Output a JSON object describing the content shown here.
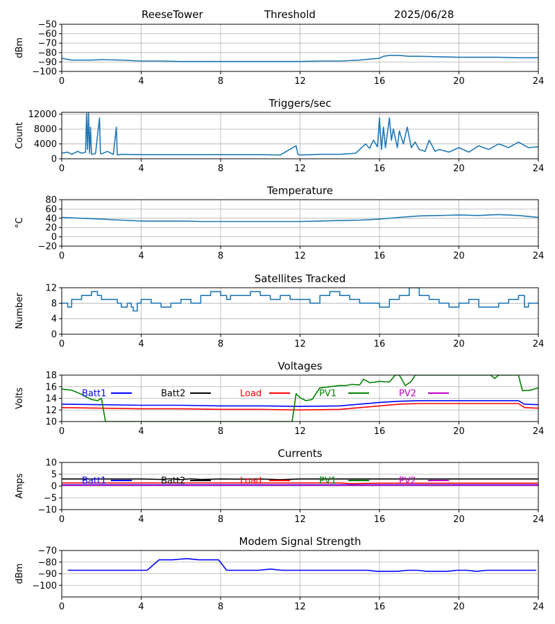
{
  "header": {
    "station": "ReeseTower",
    "mode": "Threshold",
    "date": "2025/06/28"
  },
  "colors": {
    "default_line": "#1f77b4",
    "grid": "#b0b0b0",
    "batt1": "#0000ff",
    "batt2": "#000000",
    "load": "#ff0000",
    "pv1": "#008000",
    "pv2": "#bf00bf"
  },
  "chart_data": [
    {
      "type": "line",
      "title": "",
      "xlabel": "",
      "ylabel": "dBm",
      "xlim": [
        0,
        24
      ],
      "ylim": [
        -100,
        -50
      ],
      "xticks": [
        "0",
        "4",
        "8",
        "12",
        "16",
        "20",
        "24"
      ],
      "yticks": [
        -100,
        -90,
        -80,
        -70,
        -60,
        -50
      ],
      "yticklabels": [
        "−100",
        "−90",
        "−80",
        "−70",
        "−60",
        "−50"
      ],
      "grid": true,
      "series": [
        {
          "color": "#1f77b4",
          "x": [
            0,
            0.5,
            1,
            1.5,
            2,
            3,
            4,
            5,
            6,
            7,
            8,
            9,
            10,
            11,
            12,
            13,
            14,
            15,
            15.5,
            16,
            16.2,
            16.5,
            17,
            17.5,
            18,
            19,
            20,
            21,
            22,
            23,
            24
          ],
          "y": [
            -86,
            -88,
            -88,
            -88,
            -87.5,
            -88,
            -89,
            -89,
            -89.5,
            -89.5,
            -89.5,
            -89.5,
            -89.5,
            -89.5,
            -89.5,
            -89,
            -89,
            -88,
            -87,
            -86,
            -84,
            -83,
            -83,
            -84,
            -84,
            -84.5,
            -85,
            -85,
            -85,
            -85.5,
            -85.5
          ]
        }
      ]
    },
    {
      "type": "line",
      "title": "Triggers/sec",
      "xlabel": "",
      "ylabel": "Count",
      "xlim": [
        0,
        24
      ],
      "ylim": [
        0,
        12500
      ],
      "xticks": [
        "0",
        "4",
        "8",
        "12",
        "16",
        "20",
        "24"
      ],
      "yticks": [
        0,
        4000,
        8000,
        12000
      ],
      "yticklabels": [
        "0",
        "4000",
        "8000",
        "12000"
      ],
      "grid": true,
      "series": [
        {
          "color": "#1f77b4",
          "x": [
            0,
            0.3,
            0.5,
            0.8,
            1.0,
            1.2,
            1.25,
            1.3,
            1.35,
            1.4,
            1.45,
            1.5,
            1.7,
            1.9,
            1.95,
            2.0,
            2.3,
            2.6,
            2.75,
            2.8,
            3.0,
            4.0,
            5.0,
            6.0,
            7.0,
            8.0,
            9.0,
            10.0,
            11.0,
            11.8,
            11.9,
            12.0,
            13.0,
            14.0,
            14.8,
            15.0,
            15.3,
            15.5,
            15.7,
            15.9,
            16.0,
            16.1,
            16.2,
            16.3,
            16.5,
            16.6,
            16.7,
            16.9,
            17.0,
            17.2,
            17.4,
            17.6,
            17.8,
            18.0,
            18.3,
            18.5,
            18.8,
            19.0,
            19.5,
            20.0,
            20.5,
            21.0,
            21.5,
            22.0,
            22.5,
            23.0,
            23.5,
            24.0
          ],
          "y": [
            1500,
            1800,
            1200,
            2000,
            1500,
            1800,
            12200,
            2500,
            12500,
            1500,
            8500,
            1200,
            1400,
            11000,
            1500,
            1300,
            2000,
            1200,
            8500,
            1000,
            1200,
            1100,
            1100,
            1100,
            1100,
            1100,
            1100,
            1100,
            1000,
            3500,
            1200,
            1000,
            1200,
            1200,
            1500,
            2500,
            4000,
            2800,
            5000,
            3200,
            11000,
            2500,
            8500,
            3000,
            11000,
            5000,
            8000,
            3000,
            7500,
            4000,
            8500,
            3000,
            4500,
            2500,
            2000,
            5000,
            2000,
            2500,
            1800,
            3000,
            1800,
            3500,
            2500,
            4000,
            3000,
            4500,
            3000,
            3200
          ]
        }
      ]
    },
    {
      "type": "line",
      "title": "Temperature",
      "xlabel": "",
      "ylabel": "°C",
      "xlim": [
        0,
        24
      ],
      "ylim": [
        -20,
        80
      ],
      "xticks": [
        "0",
        "4",
        "8",
        "12",
        "16",
        "20",
        "24"
      ],
      "yticks": [
        -20,
        0,
        20,
        40,
        60,
        80
      ],
      "yticklabels": [
        "−20",
        "0",
        "20",
        "40",
        "60",
        "80"
      ],
      "grid": true,
      "series": [
        {
          "color": "#1f77b4",
          "x": [
            0,
            1,
            2,
            3,
            4,
            5,
            6,
            7,
            8,
            9,
            10,
            11,
            12,
            13,
            14,
            15,
            16,
            17,
            18,
            19,
            20,
            21,
            22,
            23,
            24
          ],
          "y": [
            42,
            40,
            38,
            36,
            34,
            34,
            34,
            33,
            33,
            33,
            33,
            33,
            33,
            34,
            35,
            36,
            38,
            42,
            45,
            46,
            47,
            46,
            48,
            46,
            42
          ]
        }
      ]
    },
    {
      "type": "line",
      "title": "Satellites Tracked",
      "xlabel": "",
      "ylabel": "Number",
      "xlim": [
        0,
        24
      ],
      "ylim": [
        0,
        12
      ],
      "xticks": [
        "0",
        "4",
        "8",
        "12",
        "16",
        "20",
        "24"
      ],
      "yticks": [
        0,
        4,
        8,
        12
      ],
      "yticklabels": [
        "0",
        "4",
        "8",
        "12"
      ],
      "grid": true,
      "series": [
        {
          "color": "#1f77b4",
          "step": true,
          "x": [
            0,
            0.3,
            0.5,
            1.0,
            1.5,
            1.8,
            2.0,
            2.5,
            2.8,
            3.0,
            3.3,
            3.5,
            3.6,
            3.8,
            4.0,
            4.3,
            4.5,
            5.0,
            5.5,
            6.0,
            6.5,
            7.0,
            7.5,
            8.0,
            8.3,
            8.5,
            9.0,
            9.5,
            10.0,
            10.5,
            11.0,
            11.5,
            12.0,
            12.5,
            13.0,
            13.5,
            14.0,
            14.5,
            15.0,
            15.5,
            16.0,
            16.5,
            17.0,
            17.5,
            18.0,
            18.5,
            19.0,
            19.5,
            20.0,
            20.5,
            21.0,
            21.5,
            22.0,
            22.5,
            23.0,
            23.3,
            23.5,
            24.0
          ],
          "y": [
            8,
            7,
            9,
            10,
            11,
            10,
            9,
            9,
            8,
            7,
            8,
            7,
            6,
            8,
            9,
            9,
            8,
            7,
            8,
            9,
            8,
            10,
            11,
            10,
            9,
            10,
            10,
            11,
            10,
            9,
            10,
            9,
            9,
            8,
            10,
            11,
            10,
            9,
            8,
            8,
            7,
            9,
            10,
            12,
            10,
            9,
            8,
            7,
            8,
            9,
            7,
            7,
            8,
            9,
            10,
            7,
            8,
            8
          ]
        }
      ]
    },
    {
      "type": "line",
      "title": "Voltages",
      "xlabel": "",
      "ylabel": "Volts",
      "xlim": [
        0,
        24
      ],
      "ylim": [
        10,
        18
      ],
      "xticks": [
        "0",
        "4",
        "8",
        "12",
        "16",
        "20",
        "24"
      ],
      "yticks": [
        10,
        12,
        14,
        16,
        18
      ],
      "yticklabels": [
        "10",
        "12",
        "14",
        "16",
        "18"
      ],
      "grid": true,
      "legend": "top",
      "series": [
        {
          "name": "Batt1",
          "color": "#0000ff",
          "x": [
            0,
            2,
            4,
            6,
            8,
            10,
            12,
            14,
            15,
            16,
            17,
            18,
            20,
            22,
            23,
            23.3,
            24
          ],
          "y": [
            13.0,
            12.9,
            12.8,
            12.8,
            12.7,
            12.7,
            12.6,
            12.7,
            13.0,
            13.3,
            13.5,
            13.6,
            13.6,
            13.6,
            13.6,
            13.0,
            12.9
          ]
        },
        {
          "name": "Batt2",
          "color": "#000000",
          "x": [],
          "y": []
        },
        {
          "name": "Load",
          "color": "#ff0000",
          "x": [
            0,
            2,
            4,
            6,
            8,
            10,
            12,
            14,
            15,
            16,
            17,
            18,
            20,
            22,
            23,
            23.3,
            24
          ],
          "y": [
            12.4,
            12.3,
            12.2,
            12.2,
            12.1,
            12.1,
            12.0,
            12.1,
            12.4,
            12.7,
            13.0,
            13.1,
            13.1,
            13.1,
            13.1,
            12.4,
            12.3
          ]
        },
        {
          "name": "PV1",
          "color": "#008000",
          "x": [
            0,
            0.5,
            1.0,
            1.2,
            1.5,
            1.8,
            2.0,
            2.2,
            11.6,
            11.8,
            12.0,
            12.3,
            12.6,
            13.0,
            13.5,
            14.0,
            14.3,
            14.6,
            15.0,
            15.2,
            15.5,
            15.8,
            16.0,
            16.5,
            16.8,
            17.0,
            17.3,
            17.6,
            17.8,
            21.6,
            21.8,
            22.0,
            22.5,
            23.0,
            23.2,
            23.6,
            24.0
          ],
          "y": [
            15.6,
            15.4,
            14.7,
            14.3,
            13.8,
            13.6,
            14.0,
            10,
            10,
            14.8,
            14.1,
            13.6,
            13.8,
            15.8,
            16.0,
            16.2,
            16.2,
            16.4,
            16.3,
            17.3,
            16.7,
            16.8,
            16.9,
            16.8,
            18,
            18,
            16.2,
            16.9,
            18,
            18,
            17.4,
            18,
            18,
            18,
            15.3,
            15.4,
            15.8
          ]
        },
        {
          "name": "PV2",
          "color": "#bf00bf",
          "x": [],
          "y": []
        }
      ]
    },
    {
      "type": "line",
      "title": "Currents",
      "xlabel": "",
      "ylabel": "Amps",
      "xlim": [
        0,
        24
      ],
      "ylim": [
        -10,
        10
      ],
      "xticks": [
        "0",
        "4",
        "8",
        "12",
        "16",
        "20",
        "24"
      ],
      "yticks": [
        -10,
        -5,
        0,
        5,
        10
      ],
      "yticklabels": [
        "−10",
        "−5",
        "0",
        "5",
        "10"
      ],
      "grid": true,
      "legend": "top",
      "series": [
        {
          "name": "Batt1",
          "color": "#0000ff",
          "x": [
            0,
            24
          ],
          "y": [
            0.5,
            0.5
          ]
        },
        {
          "name": "Batt2",
          "color": "#000000",
          "x": [
            0,
            2,
            4,
            5,
            5.5,
            6,
            6.5,
            7,
            8,
            9,
            10,
            11,
            12,
            14,
            16,
            18,
            20,
            22,
            24
          ],
          "y": [
            3,
            3,
            3,
            2.8,
            3.1,
            2.7,
            3.1,
            2.8,
            3,
            2.9,
            3,
            2.7,
            3,
            3,
            3,
            3,
            3,
            3,
            3
          ]
        },
        {
          "name": "Load",
          "color": "#ff0000",
          "x": [
            0,
            12,
            14,
            14.5,
            16,
            24
          ],
          "y": [
            1.3,
            1.3,
            1.3,
            1.0,
            1.2,
            1.2
          ]
        },
        {
          "name": "PV1",
          "color": "#008000",
          "x": [],
          "y": []
        },
        {
          "name": "PV2",
          "color": "#bf00bf",
          "x": [
            0,
            24
          ],
          "y": [
            0.3,
            0.3
          ]
        }
      ]
    },
    {
      "type": "line",
      "title": "Modem Signal Strength",
      "xlabel": "",
      "ylabel": "dBm",
      "xlim": [
        0,
        24
      ],
      "ylim": [
        -110,
        -70
      ],
      "xticks": [
        "0",
        "4",
        "8",
        "12",
        "16",
        "20",
        "24"
      ],
      "yticks": [
        -100,
        -90,
        -80,
        -70
      ],
      "yticklabels": [
        "−100",
        "−90",
        "−80",
        "−70"
      ],
      "grid": true,
      "series": [
        {
          "color": "#0000ff",
          "x": [
            0.3,
            4.3,
            4.9,
            5.6,
            6.3,
            6.9,
            7.9,
            8.3,
            9.3,
            9.9,
            10.5,
            11.1,
            12,
            13,
            14,
            15.4,
            15.9,
            16.9,
            17.4,
            17.9,
            18.4,
            19.4,
            19.9,
            20.4,
            20.9,
            21.4,
            22.4,
            23.9
          ],
          "y": [
            -87,
            -87,
            -78,
            -78,
            -77,
            -78,
            -78,
            -87,
            -87,
            -87,
            -86,
            -87,
            -87,
            -87,
            -87,
            -87,
            -88,
            -88,
            -87,
            -87,
            -88,
            -88,
            -87,
            -87,
            -88,
            -87,
            -87,
            -87
          ]
        }
      ]
    }
  ]
}
